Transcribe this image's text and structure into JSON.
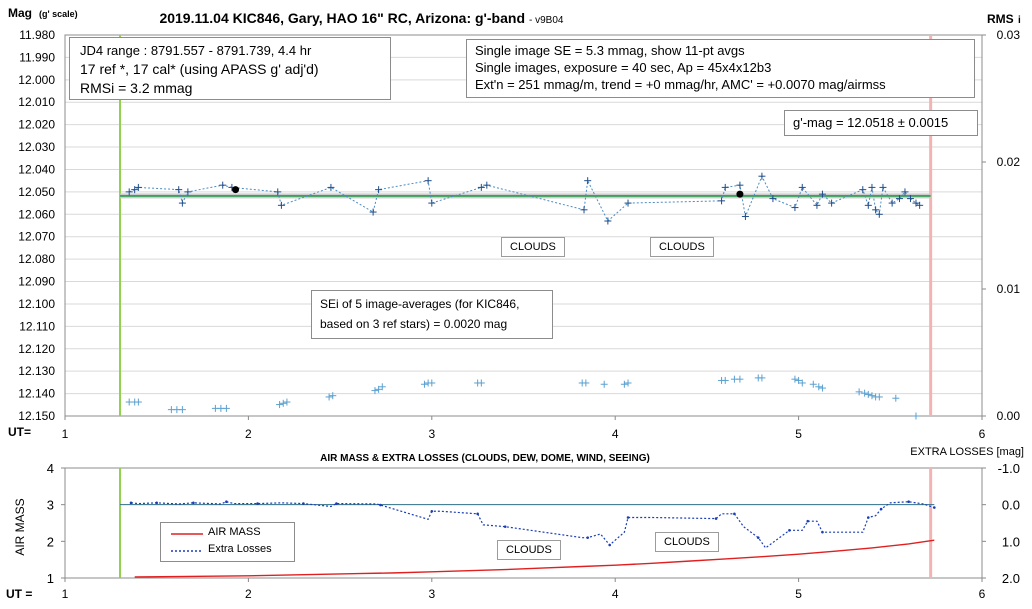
{
  "top": {
    "title": "2019.11.04 KIC846, Gary, HAO 16\" RC, Arizona: g'-band",
    "version": "- v9B04",
    "y_label_main": "Mag",
    "y_label_sub": "(g' scale)",
    "right_label_main": "RMS",
    "right_label_sub": "i",
    "ut_label": "UT=",
    "box1": [
      "JD4 range : 8791.557 - 8791.739,  4.4  hr",
      "17 ref *, 17 cal* (using APASS g' adj'd)",
      "RMSi = 3.2 mmag"
    ],
    "box2": [
      "Single image SE = 5.3 mmag, show  11-pt avgs",
      "Single images, exposure = 40 sec, Ap = 45x4x12b3",
      "Ext'n = 251 mmag/m, trend =  +0 mmag/hr, AMC' = +0.0070 mag/airmss"
    ],
    "gmag": "g'-mag = 12.0518 ± 0.0015",
    "clouds1": "CLOUDS",
    "clouds2": "CLOUDS",
    "sei": [
      "SEi of 5 image-averages (for KIC846,",
      "based on 3 ref stars) = 0.0020 mag"
    ]
  },
  "bottom": {
    "title": "AIR MASS & EXTRA LOSSES (CLOUDS, DEW, DOME, WIND, SEEING)",
    "right_title": "EXTRA LOSSES [mag]",
    "y_label": "AIR MASS",
    "ut_label": "UT =",
    "clouds1": "CLOUDS",
    "clouds2": "CLOUDS",
    "legend_airmass": "AIR MASS",
    "legend_losses": "Extra Losses"
  },
  "chart_data": [
    {
      "type": "scatter",
      "title": "2019.11.04 KIC846, Gary, HAO 16\" RC, Arizona: g'-band",
      "xlabel": "UT=",
      "ylabel": "Mag (g' scale)",
      "y2label": "RMS i",
      "xlim": [
        1,
        6
      ],
      "ylim": [
        11.98,
        12.15
      ],
      "y_inverted": true,
      "y2lim": [
        0,
        0.03
      ],
      "grid": true,
      "x_ticks": [
        "1",
        "2",
        "3",
        "4",
        "5",
        "6"
      ],
      "y_ticks": [
        "11.980",
        "11.990",
        "12.000",
        "12.010",
        "12.020",
        "12.030",
        "12.040",
        "12.050",
        "12.060",
        "12.070",
        "12.080",
        "12.090",
        "12.100",
        "12.110",
        "12.120",
        "12.130",
        "12.140",
        "12.150"
      ],
      "y2_ticks": [
        "0.00",
        "0.01",
        "0.02",
        "0.03"
      ],
      "start_ut": 1.3,
      "end_ut": 5.72,
      "mean_mag": 12.0518,
      "trend_mag": 12.0518,
      "series": [
        {
          "name": "11-pt avgs",
          "color": "#4a8cc4",
          "x": [
            1.35,
            1.38,
            1.4,
            1.62,
            1.64,
            1.67,
            1.86,
            1.91,
            2.16,
            2.18,
            2.45,
            2.68,
            2.71,
            2.98,
            3.0,
            3.27,
            3.3,
            3.83,
            3.85,
            3.96,
            4.07,
            4.58,
            4.6,
            4.68,
            4.71,
            4.8,
            4.86,
            4.98,
            5.02,
            5.1,
            5.13,
            5.18,
            5.35,
            5.38,
            5.4,
            5.42,
            5.44,
            5.46,
            5.51,
            5.55,
            5.58,
            5.61,
            5.64,
            5.66
          ],
          "y": [
            12.05,
            12.049,
            12.048,
            12.049,
            12.055,
            12.05,
            12.047,
            12.048,
            12.05,
            12.056,
            12.048,
            12.059,
            12.049,
            12.045,
            12.055,
            12.048,
            12.047,
            12.058,
            12.045,
            12.063,
            12.055,
            12.054,
            12.048,
            12.047,
            12.061,
            12.043,
            12.053,
            12.057,
            12.048,
            12.056,
            12.051,
            12.055,
            12.049,
            12.056,
            12.048,
            12.058,
            12.06,
            12.048,
            12.055,
            12.053,
            12.05,
            12.053,
            12.055,
            12.056
          ]
        },
        {
          "name": "highlighted points",
          "color": "#000000",
          "x": [
            1.93,
            4.68
          ],
          "y": [
            12.049,
            12.051
          ]
        },
        {
          "name": "RMS i",
          "axis": "y2",
          "color": "#4a8cc4",
          "x": [
            1.35,
            1.38,
            1.4,
            1.58,
            1.61,
            1.64,
            1.82,
            1.85,
            1.88,
            2.17,
            2.19,
            2.21,
            2.44,
            2.46,
            2.69,
            2.71,
            2.73,
            2.96,
            2.98,
            3.0,
            3.25,
            3.27,
            3.82,
            3.84,
            3.94,
            4.05,
            4.07,
            4.58,
            4.6,
            4.65,
            4.68,
            4.78,
            4.8,
            4.98,
            5.0,
            5.02,
            5.08,
            5.11,
            5.13,
            5.33,
            5.36,
            5.38,
            5.4,
            5.42,
            5.44,
            5.53,
            5.64
          ],
          "y": [
            0.0011,
            0.0011,
            0.0011,
            0.0005,
            0.0005,
            0.0005,
            0.0006,
            0.0006,
            0.0006,
            0.0009,
            0.001,
            0.0011,
            0.0015,
            0.0016,
            0.002,
            0.0021,
            0.0023,
            0.0025,
            0.0026,
            0.0026,
            0.0026,
            0.0026,
            0.0026,
            0.0026,
            0.0025,
            0.0025,
            0.0026,
            0.0028,
            0.0028,
            0.0029,
            0.0029,
            0.003,
            0.003,
            0.0029,
            0.0028,
            0.0026,
            0.0025,
            0.0023,
            0.0022,
            0.0019,
            0.0018,
            0.0017,
            0.0016,
            0.0015,
            0.0015,
            0.0014,
            0.0
          ]
        }
      ]
    },
    {
      "type": "line",
      "title": "AIR MASS & EXTRA LOSSES (CLOUDS, DEW, DOME, WIND, SEEING)",
      "xlabel": "UT =",
      "ylabel": "AIR MASS",
      "y2label": "EXTRA LOSSES [mag]",
      "xlim": [
        1,
        6
      ],
      "ylim": [
        1,
        4
      ],
      "y2lim": [
        2.0,
        -1.0
      ],
      "x_ticks": [
        "1",
        "2",
        "3",
        "4",
        "5",
        "6"
      ],
      "y_ticks": [
        "1",
        "2",
        "3",
        "4"
      ],
      "y2_ticks": [
        "-1.0",
        "0.0",
        "1.0",
        "2.0"
      ],
      "legend": "bottom-left",
      "series": [
        {
          "name": "AIR MASS",
          "color": "#e02020",
          "x": [
            1.38,
            1.6,
            1.8,
            2.0,
            2.2,
            2.4,
            2.6,
            2.8,
            3.0,
            3.2,
            3.4,
            3.6,
            3.8,
            4.0,
            4.2,
            4.4,
            4.6,
            4.8,
            5.0,
            5.2,
            5.4,
            5.6,
            5.74
          ],
          "y": [
            1.03,
            1.04,
            1.05,
            1.06,
            1.08,
            1.1,
            1.12,
            1.14,
            1.17,
            1.2,
            1.23,
            1.27,
            1.31,
            1.35,
            1.4,
            1.46,
            1.52,
            1.58,
            1.65,
            1.73,
            1.82,
            1.93,
            2.03
          ]
        },
        {
          "name": "Extra Losses",
          "color": "#1a3db8",
          "x": [
            1.36,
            1.4,
            1.5,
            1.62,
            1.7,
            1.85,
            1.88,
            1.92,
            2.05,
            2.18,
            2.3,
            2.45,
            2.48,
            2.7,
            2.72,
            2.98,
            3.0,
            3.05,
            3.25,
            3.28,
            3.4,
            3.82,
            3.85,
            3.92,
            3.97,
            4.05,
            4.07,
            4.2,
            4.55,
            4.58,
            4.65,
            4.7,
            4.78,
            4.82,
            4.95,
            5.02,
            5.05,
            5.1,
            5.13,
            5.35,
            5.38,
            5.42,
            5.45,
            5.5,
            5.6,
            5.68,
            5.74
          ],
          "y": [
            -0.05,
            -0.03,
            -0.05,
            -0.02,
            -0.05,
            -0.02,
            -0.08,
            -0.03,
            -0.03,
            -0.05,
            -0.03,
            0.05,
            -0.03,
            -0.02,
            0.01,
            0.4,
            0.18,
            0.18,
            0.25,
            0.55,
            0.6,
            0.9,
            0.9,
            0.8,
            1.1,
            0.75,
            0.35,
            0.35,
            0.38,
            0.25,
            0.25,
            0.6,
            0.9,
            1.18,
            0.7,
            0.7,
            0.45,
            0.45,
            0.75,
            0.75,
            0.35,
            0.3,
            0.12,
            -0.05,
            -0.08,
            -0.02,
            0.08
          ]
        }
      ]
    }
  ]
}
